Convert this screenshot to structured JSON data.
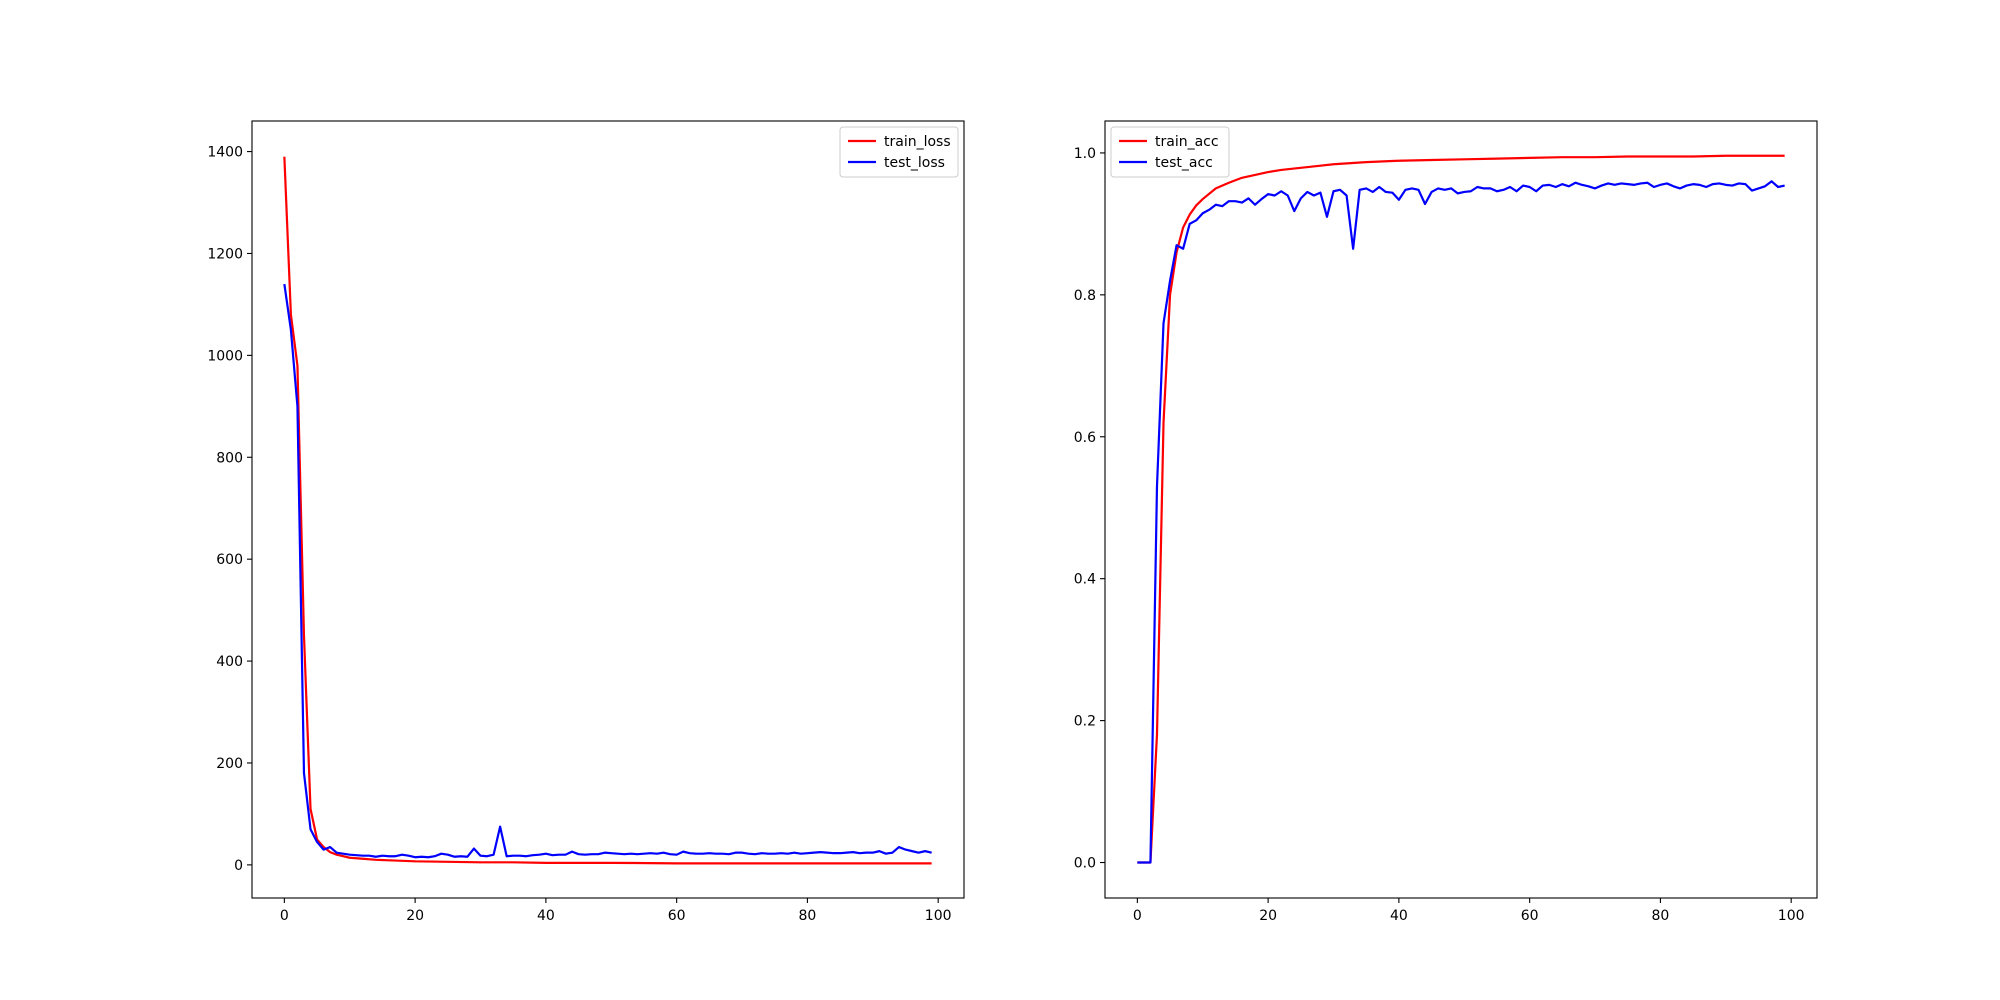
{
  "chart_data": [
    {
      "type": "line",
      "title": "",
      "xlabel": "",
      "ylabel": "",
      "xlim": [
        -4.95,
        103.95
      ],
      "ylim": [
        -65,
        1460
      ],
      "xticks": [
        0,
        20,
        40,
        60,
        80,
        100
      ],
      "yticks": [
        0,
        200,
        400,
        600,
        800,
        1000,
        1200,
        1400
      ],
      "x_tick_labels": [
        "0",
        "20",
        "40",
        "60",
        "80",
        "100"
      ],
      "y_tick_labels": [
        "0",
        "200",
        "400",
        "600",
        "800",
        "1000",
        "1200",
        "1400"
      ],
      "grid": false,
      "legend_position": "top-right",
      "series": [
        {
          "name": "train_loss",
          "color": "#ff0000",
          "x": [
            0,
            1,
            2,
            3,
            4,
            5,
            6,
            7,
            8,
            9,
            10,
            12,
            14,
            16,
            18,
            20,
            25,
            30,
            35,
            40,
            50,
            60,
            70,
            80,
            90,
            99
          ],
          "y": [
            1390,
            1080,
            980,
            450,
            110,
            50,
            35,
            25,
            20,
            17,
            14,
            12,
            10,
            9,
            8,
            7,
            6,
            5,
            5,
            4,
            4,
            3,
            3,
            3,
            3,
            3
          ]
        },
        {
          "name": "test_loss",
          "color": "#0000ff",
          "x": [
            0,
            1,
            2,
            3,
            4,
            5,
            6,
            7,
            8,
            9,
            10,
            11,
            12,
            13,
            14,
            15,
            16,
            17,
            18,
            19,
            20,
            21,
            22,
            23,
            24,
            25,
            26,
            27,
            28,
            29,
            30,
            31,
            32,
            33,
            34,
            35,
            36,
            37,
            38,
            39,
            40,
            41,
            42,
            43,
            44,
            45,
            46,
            47,
            48,
            49,
            50,
            51,
            52,
            53,
            54,
            55,
            56,
            57,
            58,
            59,
            60,
            61,
            62,
            63,
            64,
            65,
            66,
            67,
            68,
            69,
            70,
            71,
            72,
            73,
            74,
            75,
            76,
            77,
            78,
            79,
            80,
            81,
            82,
            83,
            84,
            85,
            86,
            87,
            88,
            89,
            90,
            91,
            92,
            93,
            94,
            95,
            96,
            97,
            98,
            99
          ],
          "y": [
            1140,
            1050,
            900,
            180,
            70,
            45,
            30,
            35,
            24,
            22,
            20,
            19,
            18,
            18,
            16,
            18,
            17,
            17,
            20,
            18,
            15,
            16,
            15,
            17,
            22,
            20,
            16,
            17,
            16,
            32,
            18,
            17,
            20,
            75,
            17,
            18,
            18,
            17,
            19,
            20,
            22,
            19,
            20,
            20,
            26,
            21,
            20,
            21,
            21,
            24,
            23,
            22,
            21,
            22,
            21,
            22,
            23,
            22,
            24,
            21,
            20,
            26,
            23,
            22,
            22,
            23,
            22,
            22,
            21,
            24,
            24,
            22,
            21,
            23,
            22,
            22,
            23,
            22,
            24,
            22,
            23,
            24,
            25,
            24,
            23,
            23,
            24,
            25,
            23,
            24,
            24,
            27,
            22,
            24,
            35,
            30,
            27,
            24,
            27,
            24
          ]
        }
      ]
    },
    {
      "type": "line",
      "title": "",
      "xlabel": "",
      "ylabel": "",
      "xlim": [
        -4.95,
        103.95
      ],
      "ylim": [
        -0.05,
        1.045
      ],
      "xticks": [
        0,
        20,
        40,
        60,
        80,
        100
      ],
      "yticks": [
        0.0,
        0.2,
        0.4,
        0.6,
        0.8,
        1.0
      ],
      "x_tick_labels": [
        "0",
        "20",
        "40",
        "60",
        "80",
        "100"
      ],
      "y_tick_labels": [
        "0.0",
        "0.2",
        "0.4",
        "0.6",
        "0.8",
        "1.0"
      ],
      "grid": false,
      "legend_position": "top-left",
      "series": [
        {
          "name": "train_acc",
          "color": "#ff0000",
          "x": [
            0,
            1,
            2,
            3,
            4,
            5,
            6,
            7,
            8,
            9,
            10,
            12,
            14,
            16,
            18,
            20,
            22,
            25,
            28,
            30,
            35,
            40,
            45,
            50,
            55,
            60,
            65,
            70,
            75,
            80,
            85,
            90,
            95,
            99
          ],
          "y": [
            0.0,
            0.0,
            0.0,
            0.18,
            0.62,
            0.8,
            0.86,
            0.895,
            0.913,
            0.926,
            0.935,
            0.95,
            0.958,
            0.965,
            0.969,
            0.973,
            0.976,
            0.979,
            0.982,
            0.984,
            0.987,
            0.989,
            0.99,
            0.991,
            0.992,
            0.993,
            0.994,
            0.994,
            0.995,
            0.995,
            0.995,
            0.996,
            0.996,
            0.996
          ]
        },
        {
          "name": "test_acc",
          "color": "#0000ff",
          "x": [
            0,
            1,
            2,
            3,
            4,
            5,
            6,
            7,
            8,
            9,
            10,
            11,
            12,
            13,
            14,
            15,
            16,
            17,
            18,
            19,
            20,
            21,
            22,
            23,
            24,
            25,
            26,
            27,
            28,
            29,
            30,
            31,
            32,
            33,
            34,
            35,
            36,
            37,
            38,
            39,
            40,
            41,
            42,
            43,
            44,
            45,
            46,
            47,
            48,
            49,
            50,
            51,
            52,
            53,
            54,
            55,
            56,
            57,
            58,
            59,
            60,
            61,
            62,
            63,
            64,
            65,
            66,
            67,
            68,
            69,
            70,
            71,
            72,
            73,
            74,
            75,
            76,
            77,
            78,
            79,
            80,
            81,
            82,
            83,
            84,
            85,
            86,
            87,
            88,
            89,
            90,
            91,
            92,
            93,
            94,
            95,
            96,
            97,
            98,
            99
          ],
          "y": [
            0.0,
            0.0,
            0.0,
            0.53,
            0.76,
            0.82,
            0.87,
            0.865,
            0.9,
            0.905,
            0.915,
            0.92,
            0.927,
            0.925,
            0.932,
            0.932,
            0.93,
            0.936,
            0.927,
            0.935,
            0.942,
            0.94,
            0.946,
            0.94,
            0.918,
            0.936,
            0.945,
            0.94,
            0.944,
            0.91,
            0.946,
            0.948,
            0.94,
            0.865,
            0.948,
            0.95,
            0.945,
            0.952,
            0.945,
            0.944,
            0.934,
            0.948,
            0.95,
            0.948,
            0.928,
            0.945,
            0.95,
            0.948,
            0.95,
            0.943,
            0.945,
            0.946,
            0.952,
            0.95,
            0.95,
            0.946,
            0.948,
            0.952,
            0.946,
            0.954,
            0.952,
            0.946,
            0.954,
            0.955,
            0.952,
            0.956,
            0.953,
            0.958,
            0.955,
            0.953,
            0.95,
            0.954,
            0.957,
            0.955,
            0.957,
            0.956,
            0.955,
            0.957,
            0.958,
            0.952,
            0.955,
            0.957,
            0.953,
            0.95,
            0.954,
            0.956,
            0.955,
            0.952,
            0.956,
            0.957,
            0.955,
            0.954,
            0.957,
            0.956,
            0.947,
            0.95,
            0.953,
            0.96,
            0.952,
            0.954
          ]
        }
      ]
    }
  ]
}
